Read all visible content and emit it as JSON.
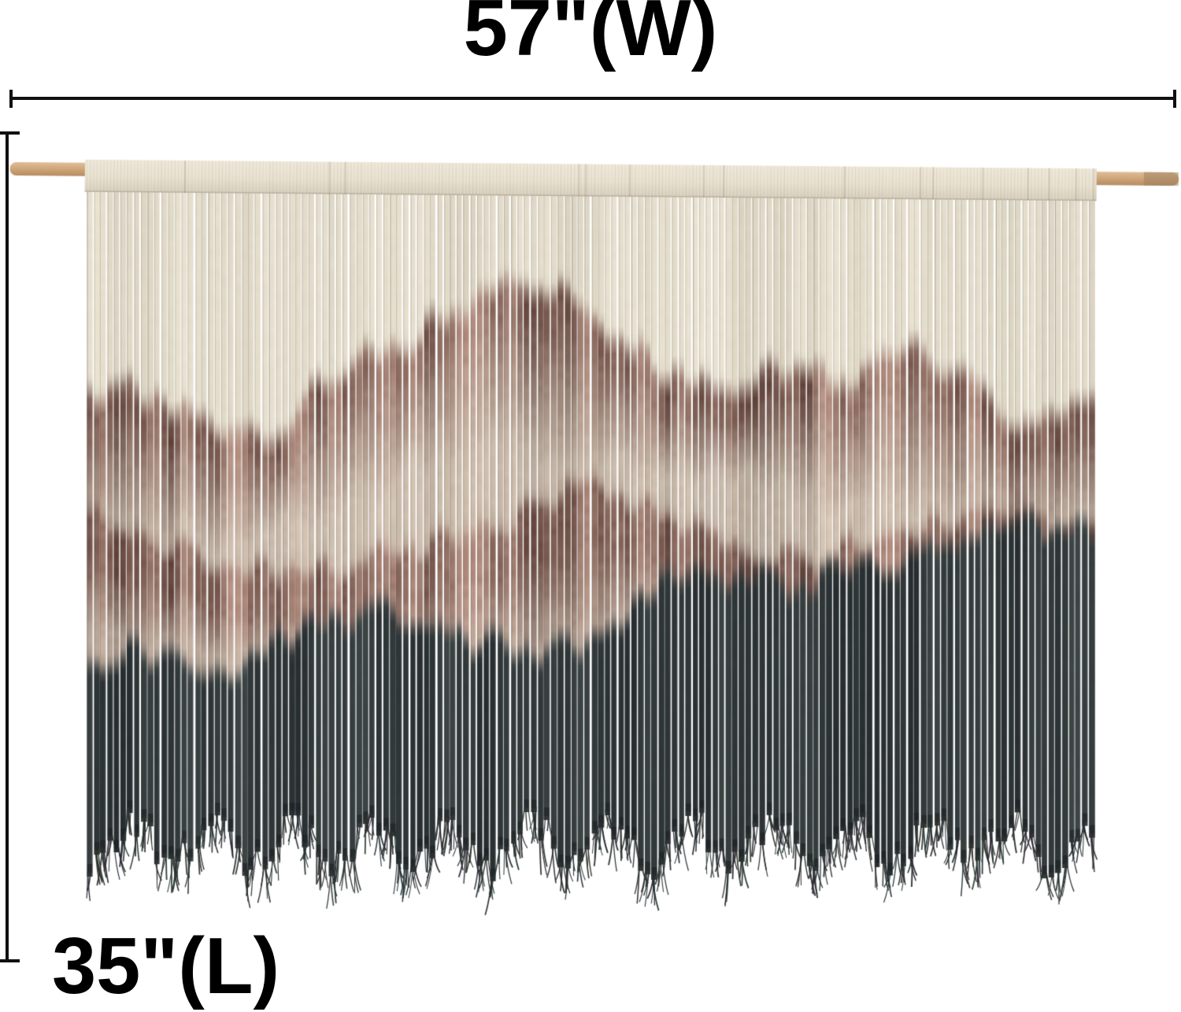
{
  "annotations": {
    "width_label": "57\"(W)",
    "length_label": "35\"(L)"
  },
  "artwork": {
    "subject": "macrame fringe wall hanging with dip-dye mountain pattern hung on a wooden dowel",
    "colors": {
      "background": "#ffffff",
      "measure_line": "#101010",
      "label_text": "#000000",
      "cream": "#e9e2d1",
      "cream_shadow": "#cfc6b2",
      "brown_dark": "#5f4038",
      "brown_pink": "#b08a7c",
      "charcoal": "#272e31",
      "charcoal_light": "#4a5352",
      "wood_light": "#e2bd97",
      "wood_mid": "#d0a87c",
      "wood_dark": "#b68c60",
      "wood_tip": "#9e8263"
    }
  }
}
